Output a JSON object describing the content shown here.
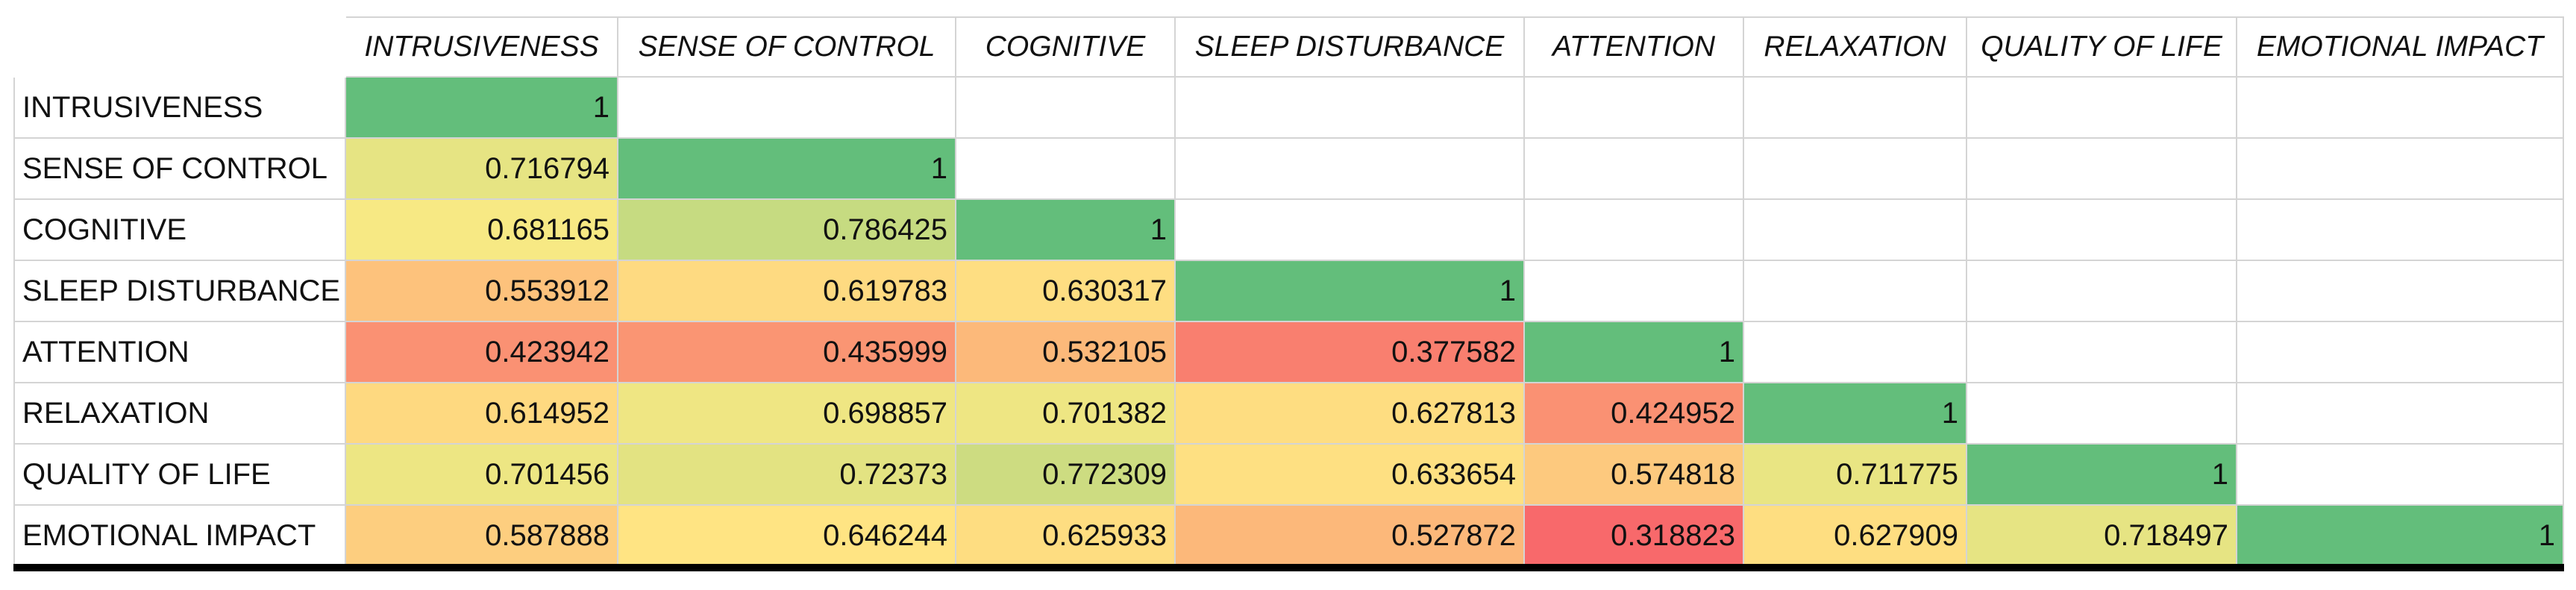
{
  "table": {
    "columns": [
      "INTRUSIVENESS",
      "SENSE OF CONTROL",
      "COGNITIVE",
      "SLEEP DISTURBANCE",
      "ATTENTION",
      "RELAXATION",
      "QUALITY OF LIFE",
      "EMOTIONAL IMPACT"
    ],
    "rows": [
      {
        "label": "INTRUSIVENESS",
        "values": [
          1
        ]
      },
      {
        "label": "SENSE OF CONTROL",
        "values": [
          0.716794,
          1
        ]
      },
      {
        "label": "COGNITIVE",
        "values": [
          0.681165,
          0.786425,
          1
        ]
      },
      {
        "label": "SLEEP DISTURBANCE",
        "values": [
          0.553912,
          0.619783,
          0.630317,
          1
        ]
      },
      {
        "label": "ATTENTION",
        "values": [
          0.423942,
          0.435999,
          0.532105,
          0.377582,
          1
        ]
      },
      {
        "label": "RELAXATION",
        "values": [
          0.614952,
          0.698857,
          0.701382,
          0.627813,
          0.424952,
          1
        ]
      },
      {
        "label": "QUALITY OF LIFE",
        "values": [
          0.701456,
          0.72373,
          0.772309,
          0.633654,
          0.574818,
          0.711775,
          1
        ]
      },
      {
        "label": "EMOTIONAL IMPACT",
        "values": [
          0.587888,
          0.646244,
          0.625933,
          0.527872,
          0.318823,
          0.627909,
          0.718497,
          1
        ]
      }
    ]
  }
}
